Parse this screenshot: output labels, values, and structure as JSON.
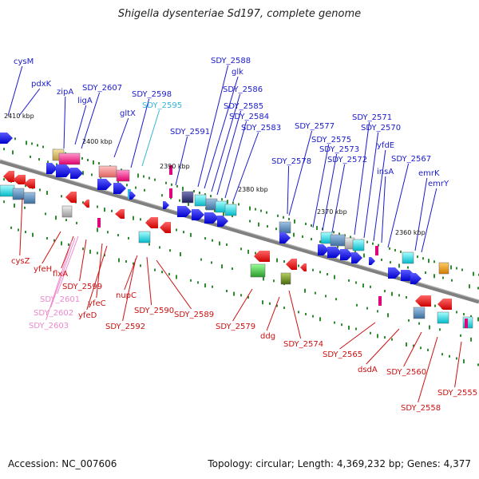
{
  "title": "Shigella dysenteriae Sd197, complete genome",
  "footer": {
    "accession": "Accession: NC_007606",
    "summary": "Topology: circular; Length: 4,369,232 bp; Genes: 4,377"
  },
  "colors": {
    "forward_label": "#1a1acc",
    "forward_label_light": "#33b5d6",
    "reverse_label": "#cc1111",
    "reverse_label_light": "#ee88cc",
    "backbone": "#808080",
    "tick": "#2e8b2e"
  },
  "scale": [
    {
      "label": "2410 kbp"
    },
    {
      "label": "2400 kbp"
    },
    {
      "label": "2390 kbp"
    },
    {
      "label": "2380 kbp"
    },
    {
      "label": "2370 kbp"
    },
    {
      "label": "2360 kbp"
    }
  ],
  "forward_genes": [
    {
      "label": "cysM",
      "style": "dark"
    },
    {
      "label": "pdxK",
      "style": "dark"
    },
    {
      "label": "zipA",
      "style": "dark"
    },
    {
      "label": "ligA",
      "style": "dark"
    },
    {
      "label": "SDY_2607",
      "style": "dark"
    },
    {
      "label": "gltX",
      "style": "dark"
    },
    {
      "label": "SDY_2598",
      "style": "dark"
    },
    {
      "label": "SDY_2595",
      "style": "light"
    },
    {
      "label": "SDY_2591",
      "style": "dark"
    },
    {
      "label": "SDY_2588",
      "style": "dark"
    },
    {
      "label": "glk",
      "style": "dark"
    },
    {
      "label": "SDY_2586",
      "style": "dark"
    },
    {
      "label": "SDY_2585",
      "style": "dark"
    },
    {
      "label": "SDY_2584",
      "style": "dark"
    },
    {
      "label": "SDY_2583",
      "style": "dark"
    },
    {
      "label": "SDY_2578",
      "style": "dark"
    },
    {
      "label": "SDY_2577",
      "style": "dark"
    },
    {
      "label": "SDY_2575",
      "style": "dark"
    },
    {
      "label": "SDY_2573",
      "style": "dark"
    },
    {
      "label": "SDY_2572",
      "style": "dark"
    },
    {
      "label": "SDY_2571",
      "style": "dark"
    },
    {
      "label": "SDY_2570",
      "style": "dark"
    },
    {
      "label": "yfdE",
      "style": "dark"
    },
    {
      "label": "insA",
      "style": "dark"
    },
    {
      "label": "SDY_2567",
      "style": "dark"
    },
    {
      "label": "emrK",
      "style": "dark"
    },
    {
      "label": "emrY",
      "style": "dark"
    }
  ],
  "reverse_genes": [
    {
      "label": "cysZ",
      "style": "dark"
    },
    {
      "label": "yfeH",
      "style": "dark"
    },
    {
      "label": "flxA",
      "style": "dark"
    },
    {
      "label": "SDY_2599",
      "style": "dark"
    },
    {
      "label": "SDY_2601",
      "style": "light"
    },
    {
      "label": "yfeC",
      "style": "dark"
    },
    {
      "label": "SDY_2602",
      "style": "light"
    },
    {
      "label": "yfeD",
      "style": "dark"
    },
    {
      "label": "SDY_2603",
      "style": "light"
    },
    {
      "label": "nupC",
      "style": "dark"
    },
    {
      "label": "SDY_2590",
      "style": "dark"
    },
    {
      "label": "SDY_2592",
      "style": "dark"
    },
    {
      "label": "SDY_2589",
      "style": "dark"
    },
    {
      "label": "SDY_2579",
      "style": "dark"
    },
    {
      "label": "ddg",
      "style": "dark"
    },
    {
      "label": "SDY_2574",
      "style": "dark"
    },
    {
      "label": "SDY_2565",
      "style": "dark"
    },
    {
      "label": "dsdA",
      "style": "dark"
    },
    {
      "label": "SDY_2560",
      "style": "dark"
    },
    {
      "label": "SDY_2555",
      "style": "dark"
    },
    {
      "label": "SDY_2558",
      "style": "dark"
    }
  ]
}
